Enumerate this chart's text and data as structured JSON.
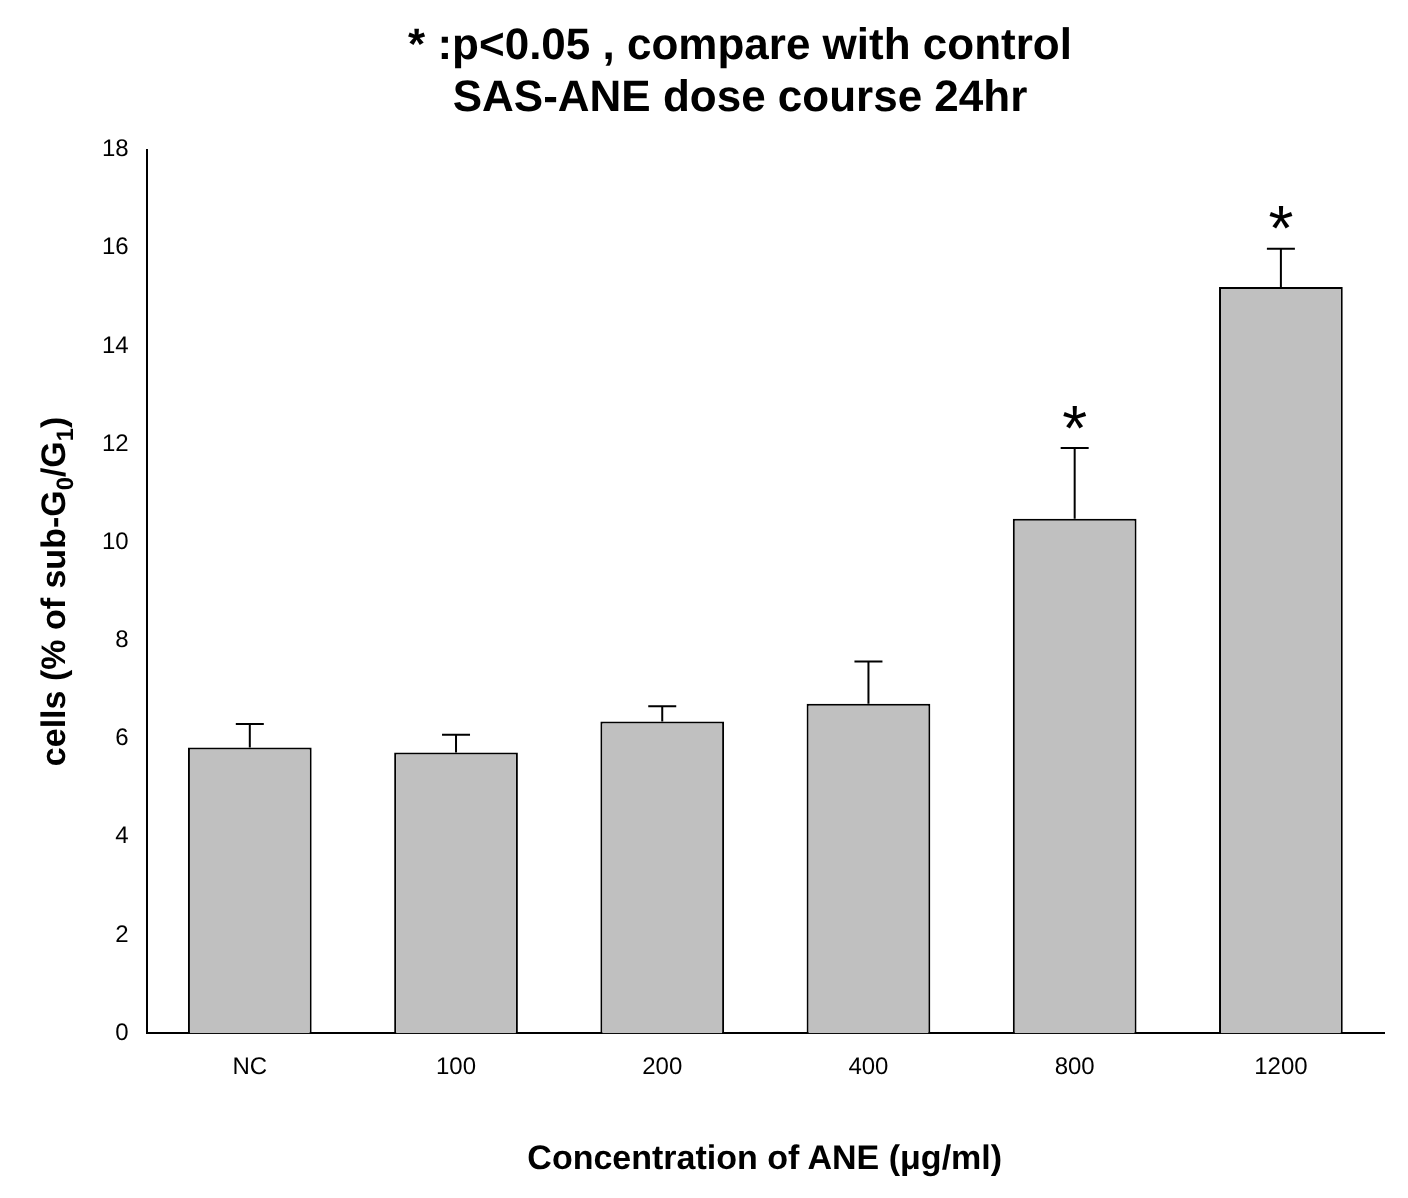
{
  "chart_data": {
    "type": "bar",
    "title": [
      "* :p<0.05 , compare with control",
      "SAS-ANE dose course 24hr"
    ],
    "xlabel": "Concentration of ANE (μg/ml)",
    "ylabel": "cells (% of sub-G$_{0}$/G$_{1}$)",
    "categories": [
      "NC",
      "100",
      "200",
      "400",
      "800",
      "1200"
    ],
    "values": [
      5.82,
      5.72,
      6.35,
      6.71,
      10.48,
      15.2
    ],
    "errors": [
      [
        5.82,
        6.3
      ],
      [
        5.72,
        6.08
      ],
      [
        6.35,
        6.66
      ],
      [
        6.71,
        7.57
      ],
      [
        10.48,
        11.92
      ],
      [
        15.2,
        15.98
      ]
    ],
    "color": "#c0c0c0",
    "ylim": [
      0,
      18
    ],
    "yticks": [
      0,
      2,
      4,
      6,
      8,
      10,
      12,
      14,
      16,
      18
    ],
    "grid": false,
    "annotations": [
      {
        "text": "*",
        "x": "800",
        "y": 11.92
      },
      {
        "text": "*",
        "x": "1200",
        "y": 15.98
      }
    ]
  }
}
